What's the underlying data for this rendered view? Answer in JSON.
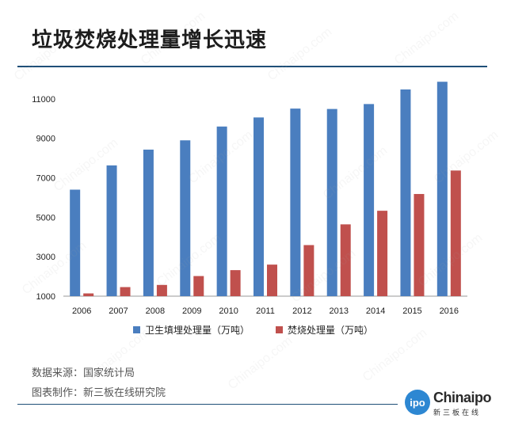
{
  "title": "垃圾焚烧处理量增长迅速",
  "chart_data": {
    "type": "bar",
    "categories": [
      "2006",
      "2007",
      "2008",
      "2009",
      "2010",
      "2011",
      "2012",
      "2013",
      "2014",
      "2015",
      "2016"
    ],
    "series": [
      {
        "name": "卫生填埋处理量（万吨）",
        "color": "#4a7ebf",
        "values": [
          6400,
          7630,
          8430,
          8900,
          9600,
          10060,
          10510,
          10490,
          10740,
          11480,
          11870
        ]
      },
      {
        "name": "焚烧处理量（万吨）",
        "color": "#c0504d",
        "values": [
          1140,
          1460,
          1570,
          2020,
          2320,
          2600,
          3590,
          4640,
          5330,
          6180,
          7370
        ]
      }
    ],
    "yticks": [
      1000,
      3000,
      5000,
      7000,
      9000,
      11000
    ],
    "ylim": [
      1000,
      12000
    ],
    "xlabel": "",
    "ylabel": "",
    "legend_position": "bottom"
  },
  "footer": {
    "source": "数据来源：国家统计局",
    "maker": "图表制作：新三板在线研究院"
  },
  "logo": {
    "badge": "ipo",
    "name": "Chinaipo",
    "sub": "新三板在线"
  },
  "watermark_text": "Chinaipo.com"
}
